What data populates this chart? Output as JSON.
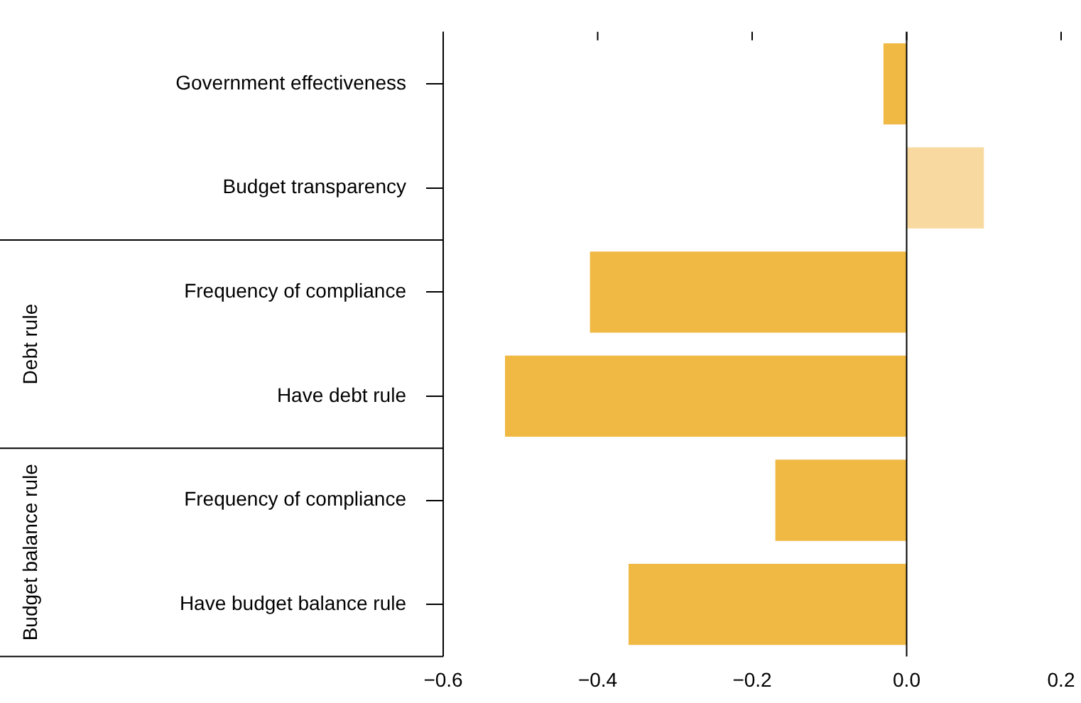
{
  "chart_data": {
    "type": "bar",
    "orientation": "horizontal",
    "categories": [
      "Government effectiveness",
      "Budget transparency",
      "Frequency of compliance",
      "Have debt rule",
      "Frequency of compliance",
      "Have budget balance rule"
    ],
    "values": [
      -0.03,
      0.1,
      -0.41,
      -0.52,
      -0.17,
      -0.36
    ],
    "colors": [
      "#f0b944",
      "#f8d9a0",
      "#f0b944",
      "#f0b944",
      "#f0b944",
      "#f0b944"
    ],
    "xlim": [
      -0.6,
      0.2
    ],
    "xticks": [
      {
        "value": -0.6,
        "label": "−0.6"
      },
      {
        "value": -0.4,
        "label": "−0.4"
      },
      {
        "value": -0.2,
        "label": "−0.2"
      },
      {
        "value": 0,
        "label": "0.0"
      },
      {
        "value": 0.2,
        "label": "0.2"
      }
    ],
    "ref_lines": [
      {
        "axis": "x",
        "value": 0,
        "color": "#000000"
      }
    ],
    "annotations": [
      "Debt rule",
      "Budget balance rule"
    ],
    "grid": false,
    "legend": false
  }
}
